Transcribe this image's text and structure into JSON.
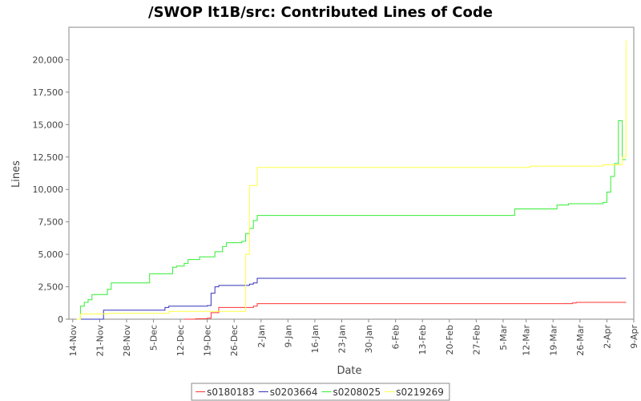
{
  "chart_data": {
    "type": "line",
    "title": "/SWOP lt1B/src: Contributed Lines of Code",
    "xlabel": "Date",
    "ylabel": "Lines",
    "x_scale": "date",
    "xlim": [
      "2006-11-13",
      "2007-04-09"
    ],
    "ylim": [
      0,
      22500
    ],
    "y_ticks": [
      0,
      2500,
      5000,
      7500,
      10000,
      12500,
      15000,
      17500,
      20000
    ],
    "y_tick_labels": [
      "0",
      "2,500",
      "5,000",
      "7,500",
      "10,000",
      "12,500",
      "15,000",
      "17,500",
      "20,000"
    ],
    "x_ticks": [
      "2006-11-14",
      "2006-11-21",
      "2006-11-28",
      "2006-12-05",
      "2006-12-12",
      "2006-12-19",
      "2006-12-26",
      "2007-01-02",
      "2007-01-09",
      "2007-01-16",
      "2007-01-23",
      "2007-01-30",
      "2007-02-06",
      "2007-02-13",
      "2007-02-20",
      "2007-02-27",
      "2007-03-06",
      "2007-03-12",
      "2007-03-19",
      "2007-03-26",
      "2007-04-02",
      "2007-04-09"
    ],
    "x_tick_labels": [
      "14-Nov",
      "21-Nov",
      "28-Nov",
      "5-Dec",
      "12-Dec",
      "19-Dec",
      "26-Dec",
      "2-Jan",
      "9-Jan",
      "16-Jan",
      "23-Jan",
      "30-Jan",
      "6-Feb",
      "13-Feb",
      "20-Feb",
      "27-Feb",
      "5-Mar",
      "12-Mar",
      "19-Mar",
      "26-Mar",
      "2-Apr",
      "9-Apr"
    ],
    "grid": false,
    "legend_position": "bottom",
    "series": [
      {
        "name": "s0180183",
        "color": "#ff3333",
        "points": [
          [
            "2006-12-13",
            0
          ],
          [
            "2006-12-16",
            30
          ],
          [
            "2006-12-19",
            80
          ],
          [
            "2006-12-20",
            500
          ],
          [
            "2006-12-22",
            900
          ],
          [
            "2006-12-31",
            1000
          ],
          [
            "2007-01-01",
            1200
          ],
          [
            "2007-03-24",
            1250
          ],
          [
            "2007-03-25",
            1300
          ],
          [
            "2007-04-07",
            1300
          ]
        ]
      },
      {
        "name": "s0203664",
        "color": "#3333bb",
        "points": [
          [
            "2006-11-15",
            0
          ],
          [
            "2006-11-22",
            0
          ],
          [
            "2006-11-22",
            700
          ],
          [
            "2006-12-07",
            700
          ],
          [
            "2006-12-08",
            900
          ],
          [
            "2006-12-09",
            1000
          ],
          [
            "2006-12-19",
            1050
          ],
          [
            "2006-12-20",
            2000
          ],
          [
            "2006-12-21",
            2500
          ],
          [
            "2006-12-22",
            2600
          ],
          [
            "2006-12-30",
            2700
          ],
          [
            "2006-12-31",
            2800
          ],
          [
            "2007-01-01",
            3150
          ],
          [
            "2007-04-07",
            3150
          ]
        ]
      },
      {
        "name": "s0208025",
        "color": "#33ee33",
        "points": [
          [
            "2006-11-15",
            0
          ],
          [
            "2006-11-16",
            1000
          ],
          [
            "2006-11-17",
            1300
          ],
          [
            "2006-11-18",
            1500
          ],
          [
            "2006-11-19",
            1900
          ],
          [
            "2006-11-23",
            2300
          ],
          [
            "2006-11-24",
            2800
          ],
          [
            "2006-12-03",
            2800
          ],
          [
            "2006-12-04",
            3500
          ],
          [
            "2006-12-10",
            4000
          ],
          [
            "2006-12-11",
            4100
          ],
          [
            "2006-12-13",
            4300
          ],
          [
            "2006-12-14",
            4600
          ],
          [
            "2006-12-17",
            4800
          ],
          [
            "2006-12-21",
            5200
          ],
          [
            "2006-12-23",
            5600
          ],
          [
            "2006-12-24",
            5900
          ],
          [
            "2006-12-28",
            6000
          ],
          [
            "2006-12-29",
            6600
          ],
          [
            "2006-12-30",
            7000
          ],
          [
            "2006-12-31",
            7600
          ],
          [
            "2007-01-01",
            8000
          ],
          [
            "2007-03-08",
            8000
          ],
          [
            "2007-03-09",
            8500
          ],
          [
            "2007-03-20",
            8800
          ],
          [
            "2007-03-23",
            8900
          ],
          [
            "2007-04-01",
            9000
          ],
          [
            "2007-04-02",
            9800
          ],
          [
            "2007-04-03",
            11000
          ],
          [
            "2007-04-04",
            12000
          ],
          [
            "2007-04-05",
            15300
          ],
          [
            "2007-04-06",
            12300
          ],
          [
            "2007-04-07",
            12300
          ]
        ]
      },
      {
        "name": "s0219269",
        "color": "#ffff44",
        "points": [
          [
            "2006-11-15",
            0
          ],
          [
            "2006-11-16",
            400
          ],
          [
            "2006-11-22",
            400
          ],
          [
            "2006-11-23",
            450
          ],
          [
            "2006-12-02",
            450
          ],
          [
            "2006-12-09",
            600
          ],
          [
            "2006-12-28",
            600
          ],
          [
            "2006-12-29",
            5000
          ],
          [
            "2006-12-30",
            10300
          ],
          [
            "2006-12-31",
            10300
          ],
          [
            "2007-01-01",
            11700
          ],
          [
            "2007-03-12",
            11700
          ],
          [
            "2007-03-13",
            11800
          ],
          [
            "2007-04-01",
            11900
          ],
          [
            "2007-04-06",
            12500
          ],
          [
            "2007-04-07",
            21500
          ]
        ]
      }
    ]
  }
}
